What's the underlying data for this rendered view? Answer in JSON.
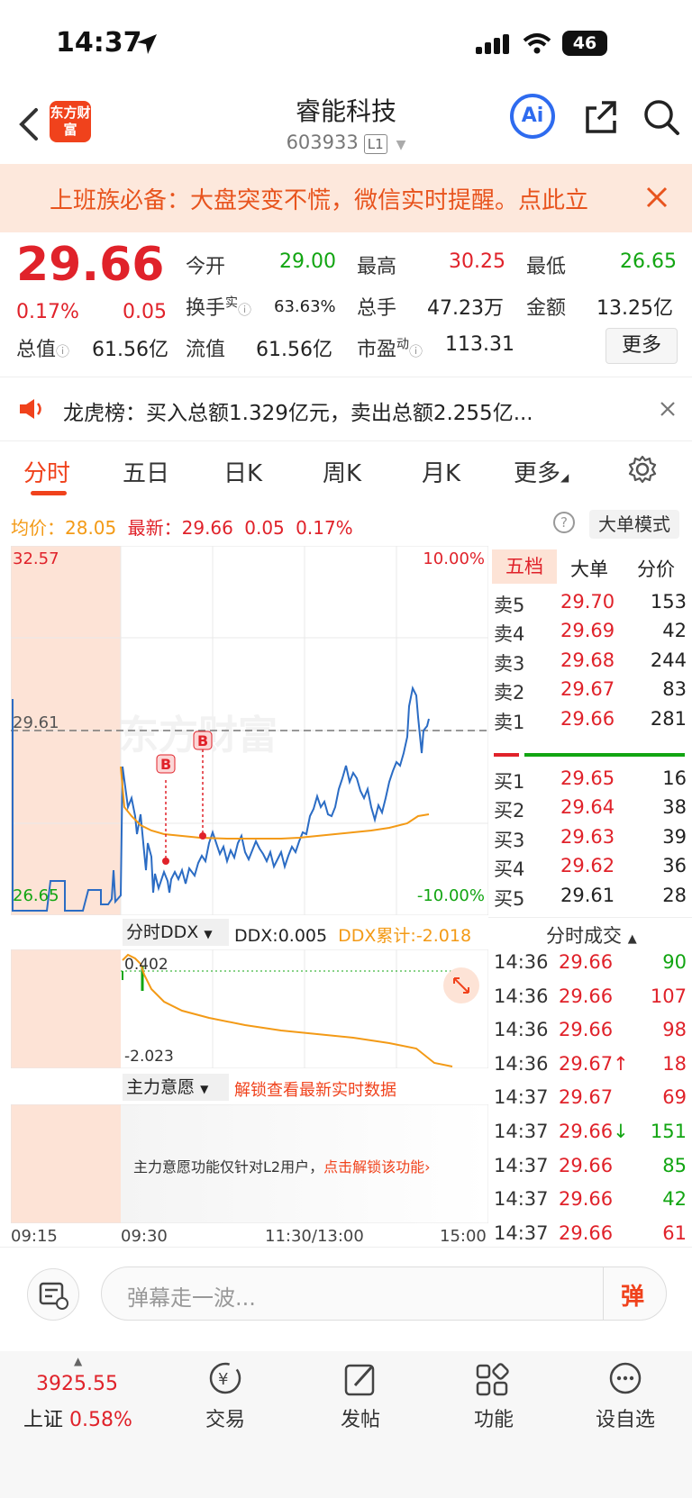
{
  "status_bar": {
    "time": "14:37",
    "battery": "46"
  },
  "header": {
    "name": "睿能科技",
    "code": "603933",
    "level": "L1",
    "logo_text": "东方财富",
    "ai_label": "Ai"
  },
  "banner": {
    "text": "上班族必备：大盘突变不慌，微信实时提醒。点此立"
  },
  "quote": {
    "price": "29.66",
    "pct": "0.17%",
    "change": "0.05",
    "open_label": "今开",
    "open": "29.00",
    "high_label": "最高",
    "high": "30.25",
    "low_label": "最低",
    "low": "26.65",
    "turnover_label": "换手",
    "turnover_sup": "实",
    "turnover": "63.63%",
    "volume_label": "总手",
    "volume": "47.23万",
    "amount_label": "金额",
    "amount": "13.25亿",
    "mktcap_label": "总值",
    "mktcap": "61.56亿",
    "float_label": "流值",
    "float": "61.56亿",
    "pe_label": "市盈",
    "pe_sup": "动",
    "pe": "113.31",
    "more_button": "更多"
  },
  "longhu": {
    "text": "龙虎榜：买入总额1.329亿元，卖出总额2.255亿..."
  },
  "tabs": [
    "分时",
    "五日",
    "日K",
    "周K",
    "月K",
    "更多"
  ],
  "info_line": {
    "avg_label": "均价：",
    "avg": "28.05",
    "last_label": "最新：",
    "last": "29.66",
    "chg": "0.05",
    "pct": "0.17%",
    "big_order_button": "大单模式"
  },
  "chart_labels": {
    "top_price": "32.57",
    "mid_price": "29.61",
    "bottom_price": "26.65",
    "top_pct": "10.00%",
    "bottom_pct": "-10.00%",
    "watermark": "东方财富",
    "marker": "B"
  },
  "ddx": {
    "selector": "分时DDX",
    "ddx_label": "DDX:",
    "ddx_value": "0.005",
    "cum_label": "DDX累计:",
    "cum_value": "-2.018",
    "top": "0.402",
    "bottom": "-2.023"
  },
  "intent": {
    "selector": "主力意愿",
    "unlock": "解锁查看最新实时数据",
    "note": "主力意愿功能仅针对L2用户，",
    "note_link": "点击解锁该功能"
  },
  "time_axis": [
    "09:15",
    "09:30",
    "11:30/13:00",
    "15:00"
  ],
  "orderbook": {
    "tabs": [
      "五档",
      "大单",
      "分价"
    ],
    "sells": [
      {
        "label": "卖5",
        "price": "29.70",
        "vol": "153"
      },
      {
        "label": "卖4",
        "price": "29.69",
        "vol": "42"
      },
      {
        "label": "卖3",
        "price": "29.68",
        "vol": "244"
      },
      {
        "label": "卖2",
        "price": "29.67",
        "vol": "83"
      },
      {
        "label": "卖1",
        "price": "29.66",
        "vol": "281"
      }
    ],
    "buys": [
      {
        "label": "买1",
        "price": "29.65",
        "vol": "16"
      },
      {
        "label": "买2",
        "price": "29.64",
        "vol": "38"
      },
      {
        "label": "买3",
        "price": "29.63",
        "vol": "39"
      },
      {
        "label": "买4",
        "price": "29.62",
        "vol": "36"
      },
      {
        "label": "买5",
        "price": "29.61",
        "vol": "28"
      }
    ]
  },
  "ticks": {
    "title": "分时成交",
    "rows": [
      {
        "time": "14:36",
        "price": "29.66",
        "arrow": "",
        "vol": "90",
        "dir": "buy"
      },
      {
        "time": "14:36",
        "price": "29.66",
        "arrow": "",
        "vol": "107",
        "dir": "sell"
      },
      {
        "time": "14:36",
        "price": "29.66",
        "arrow": "",
        "vol": "98",
        "dir": "sell"
      },
      {
        "time": "14:36",
        "price": "29.67",
        "arrow": "↑",
        "vol": "18",
        "dir": "sell"
      },
      {
        "time": "14:37",
        "price": "29.67",
        "arrow": "",
        "vol": "69",
        "dir": "sell"
      },
      {
        "time": "14:37",
        "price": "29.66",
        "arrow": "↓",
        "vol": "151",
        "dir": "buy"
      },
      {
        "time": "14:37",
        "price": "29.66",
        "arrow": "",
        "vol": "85",
        "dir": "buy"
      },
      {
        "time": "14:37",
        "price": "29.66",
        "arrow": "",
        "vol": "42",
        "dir": "buy"
      },
      {
        "time": "14:37",
        "price": "29.66",
        "arrow": "",
        "vol": "61",
        "dir": "sell"
      }
    ]
  },
  "comment": {
    "placeholder": "弹幕走一波...",
    "danmu_icon": "弹"
  },
  "footer": {
    "index_value": "3925.55",
    "index_name": "上证",
    "index_pct": "0.58%",
    "trade": "交易",
    "post": "发帖",
    "func": "功能",
    "watch": "设自选"
  },
  "colors": {
    "up": "#e0222a",
    "down": "#12a512",
    "accent": "#f0421c",
    "avg_line": "#f39a16",
    "price_line": "#2b6cc4"
  }
}
